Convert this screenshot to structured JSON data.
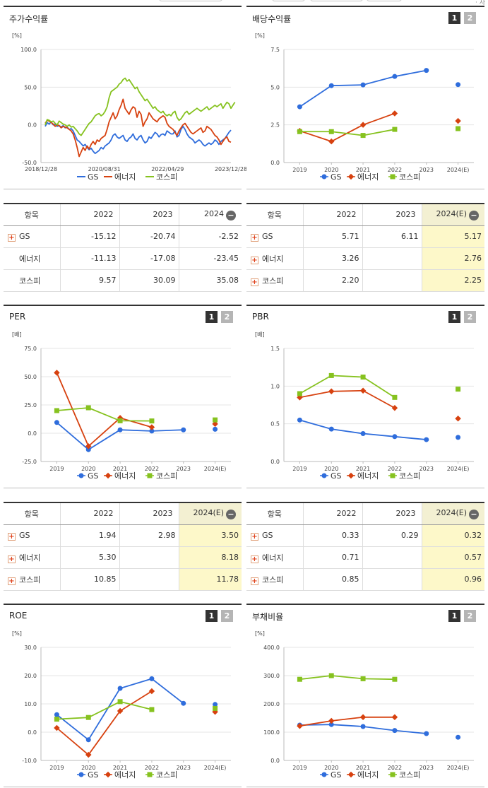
{
  "colors": {
    "GS": "#2f6ddc",
    "energy": "#d7410f",
    "kospi": "#86c21f"
  },
  "badges": {
    "one": "1",
    "two": "2"
  },
  "header": {
    "text": "· 자"
  },
  "panels": {
    "stock_return": {
      "title": "주가수익률"
    },
    "dividend": {
      "title": "배당수익률"
    },
    "per": {
      "title": "PER"
    },
    "pbr": {
      "title": "PBR"
    },
    "roe": {
      "title": "ROE"
    },
    "debt": {
      "title": "부채비율"
    }
  },
  "chart_data": [
    {
      "id": "stock_return",
      "type": "line",
      "unit": "[%]",
      "ylim": [
        -50,
        100
      ],
      "yticks": [
        "100.0",
        "50.0",
        "0.0",
        "-50.0"
      ],
      "x_ticks": [
        "2018/12/28",
        "2020/08/31",
        "2022/04/29",
        "2023/12/28"
      ],
      "series": [
        {
          "name": "GS",
          "color": "#2f6ddc",
          "values": [
            -2,
            3,
            1,
            4,
            0,
            1,
            -2,
            -1,
            -3,
            -1,
            -4,
            -3,
            -6,
            -5,
            -8,
            -14,
            -20,
            -22,
            -25,
            -28,
            -26,
            -30,
            -33,
            -31,
            -35,
            -38,
            -36,
            -34,
            -30,
            -32,
            -28,
            -26,
            -24,
            -20,
            -14,
            -12,
            -16,
            -18,
            -16,
            -14,
            -20,
            -22,
            -18,
            -16,
            -12,
            -18,
            -20,
            -16,
            -14,
            -20,
            -24,
            -22,
            -16,
            -18,
            -14,
            -10,
            -12,
            -16,
            -13,
            -12,
            -14,
            -8,
            -10,
            -12,
            -12,
            -8,
            -16,
            -14,
            -6,
            -2,
            -6,
            -12,
            -16,
            -18,
            -20,
            -24,
            -22,
            -20,
            -22,
            -26,
            -28,
            -26,
            -24,
            -26,
            -24,
            -20,
            -22,
            -26,
            -22,
            -20,
            -18,
            -14,
            -10,
            -7
          ]
        },
        {
          "name": "에너지",
          "color": "#d7410f",
          "values": [
            2,
            6,
            5,
            3,
            1,
            -2,
            0,
            -1,
            -4,
            -2,
            -3,
            -4,
            -6,
            -8,
            -12,
            -20,
            -30,
            -42,
            -36,
            -30,
            -34,
            -28,
            -32,
            -26,
            -22,
            -26,
            -20,
            -22,
            -18,
            -16,
            -14,
            -6,
            4,
            10,
            16,
            8,
            12,
            20,
            26,
            34,
            22,
            18,
            14,
            20,
            24,
            22,
            10,
            18,
            14,
            -2,
            4,
            8,
            16,
            12,
            8,
            6,
            4,
            8,
            10,
            12,
            10,
            2,
            -2,
            -4,
            -6,
            -10,
            -14,
            -8,
            -4,
            0,
            2,
            -2,
            -6,
            -10,
            -12,
            -10,
            -8,
            -6,
            -4,
            -10,
            -8,
            -2,
            -4,
            -6,
            -10,
            -14,
            -16,
            -20,
            -26,
            -22,
            -18,
            -16,
            -22,
            -23
          ]
        },
        {
          "name": "코스피",
          "color": "#86c21f",
          "values": [
            0,
            7,
            6,
            4,
            5,
            2,
            0,
            5,
            3,
            1,
            0,
            -2,
            0,
            -3,
            -2,
            -5,
            -8,
            -12,
            -14,
            -10,
            -6,
            -2,
            2,
            4,
            8,
            12,
            14,
            15,
            12,
            14,
            18,
            24,
            36,
            44,
            46,
            48,
            50,
            54,
            56,
            60,
            62,
            58,
            60,
            56,
            52,
            48,
            50,
            44,
            40,
            36,
            32,
            34,
            30,
            26,
            22,
            24,
            20,
            18,
            16,
            18,
            14,
            12,
            14,
            12,
            16,
            18,
            10,
            6,
            8,
            12,
            16,
            18,
            14,
            16,
            18,
            20,
            22,
            20,
            18,
            20,
            22,
            24,
            20,
            22,
            24,
            26,
            24,
            26,
            28,
            22,
            26,
            30,
            28,
            22,
            26,
            30
          ]
        }
      ]
    },
    {
      "id": "dividend",
      "type": "line",
      "unit": "[%]",
      "ylim": [
        0,
        7.5
      ],
      "yticks": [
        "7.5",
        "5.0",
        "2.5",
        "0.0"
      ],
      "categories": [
        "2019",
        "2020",
        "2021",
        "2022",
        "2023",
        "2024(E)"
      ],
      "series": [
        {
          "name": "GS",
          "color": "#2f6ddc",
          "values": [
            3.7,
            5.1,
            5.15,
            5.71,
            6.11,
            5.17
          ]
        },
        {
          "name": "에너지",
          "color": "#d7410f",
          "values": [
            2.1,
            1.4,
            2.5,
            3.26,
            null,
            2.76
          ]
        },
        {
          "name": "코스피",
          "color": "#86c21f",
          "values": [
            2.05,
            2.05,
            1.8,
            2.2,
            null,
            2.25
          ]
        }
      ]
    },
    {
      "id": "per",
      "type": "line",
      "unit": "[배]",
      "ylim": [
        -25,
        75
      ],
      "yticks": [
        "75.0",
        "50.0",
        "25.0",
        "0.0",
        "-25.0"
      ],
      "categories": [
        "2019",
        "2020",
        "2021",
        "2022",
        "2023",
        "2024(E)"
      ],
      "series": [
        {
          "name": "GS",
          "color": "#2f6ddc",
          "values": [
            9.5,
            -14.5,
            3.0,
            1.94,
            2.98,
            3.5
          ]
        },
        {
          "name": "에너지",
          "color": "#d7410f",
          "values": [
            53.5,
            -11.5,
            13.5,
            5.3,
            null,
            8.18
          ]
        },
        {
          "name": "코스피",
          "color": "#86c21f",
          "values": [
            20.0,
            22.5,
            11.0,
            10.85,
            null,
            11.78
          ]
        }
      ]
    },
    {
      "id": "pbr",
      "type": "line",
      "unit": "[배]",
      "ylim": [
        0,
        1.5
      ],
      "yticks": [
        "1.5",
        "1.0",
        "0.5",
        "0.0"
      ],
      "categories": [
        "2019",
        "2020",
        "2021",
        "2022",
        "2023",
        "2024(E)"
      ],
      "series": [
        {
          "name": "GS",
          "color": "#2f6ddc",
          "values": [
            0.55,
            0.43,
            0.37,
            0.33,
            0.29,
            0.32
          ]
        },
        {
          "name": "에너지",
          "color": "#d7410f",
          "values": [
            0.85,
            0.93,
            0.94,
            0.71,
            null,
            0.57
          ]
        },
        {
          "name": "코스피",
          "color": "#86c21f",
          "values": [
            0.9,
            1.14,
            1.12,
            0.85,
            null,
            0.96
          ]
        }
      ]
    },
    {
      "id": "roe",
      "type": "line",
      "unit": "[%]",
      "ylim": [
        -10,
        30
      ],
      "yticks": [
        "30.0",
        "20.0",
        "10.0",
        "0.0",
        "-10.0"
      ],
      "categories": [
        "2019",
        "2020",
        "2021",
        "2022",
        "2023",
        "2024(E)"
      ],
      "series": [
        {
          "name": "GS",
          "color": "#2f6ddc",
          "values": [
            6.2,
            -2.7,
            15.5,
            18.9,
            10.2,
            9.8
          ]
        },
        {
          "name": "에너지",
          "color": "#d7410f",
          "values": [
            1.5,
            -8.0,
            7.5,
            14.5,
            null,
            7.2
          ]
        },
        {
          "name": "코스피",
          "color": "#86c21f",
          "values": [
            4.6,
            5.2,
            10.8,
            8.0,
            null,
            8.4
          ]
        }
      ]
    },
    {
      "id": "debt",
      "type": "line",
      "unit": "[%]",
      "ylim": [
        0,
        400
      ],
      "yticks": [
        "400.0",
        "300.0",
        "200.0",
        "100.0",
        "0.0"
      ],
      "categories": [
        "2019",
        "2020",
        "2021",
        "2022",
        "2023",
        "2024(E)"
      ],
      "series": [
        {
          "name": "GS",
          "color": "#2f6ddc",
          "values": [
            125,
            127,
            120,
            106,
            95,
            82
          ]
        },
        {
          "name": "에너지",
          "color": "#d7410f",
          "values": [
            122,
            140,
            153,
            153,
            null,
            null
          ]
        },
        {
          "name": "코스피",
          "color": "#86c21f",
          "values": [
            287,
            300,
            289,
            287,
            null,
            null
          ]
        }
      ]
    }
  ],
  "tables": {
    "stock_return": {
      "headers": [
        "항목",
        "2022",
        "2023",
        "2024"
      ],
      "est_col": false,
      "rows": [
        {
          "name": "GS",
          "plus": true,
          "cells": [
            "-15.12",
            "-20.74",
            "-2.52"
          ]
        },
        {
          "name": "에너지",
          "plus": false,
          "cells": [
            "-11.13",
            "-17.08",
            "-23.45"
          ]
        },
        {
          "name": "코스피",
          "plus": false,
          "cells": [
            "9.57",
            "30.09",
            "35.08"
          ]
        }
      ]
    },
    "dividend": {
      "headers": [
        "항목",
        "2022",
        "2023",
        "2024(E)"
      ],
      "est_col": true,
      "rows": [
        {
          "name": "GS",
          "plus": true,
          "cells": [
            "5.71",
            "6.11",
            "5.17"
          ]
        },
        {
          "name": "에너지",
          "plus": true,
          "cells": [
            "3.26",
            "",
            "2.76"
          ]
        },
        {
          "name": "코스피",
          "plus": true,
          "cells": [
            "2.20",
            "",
            "2.25"
          ]
        }
      ]
    },
    "per": {
      "headers": [
        "항목",
        "2022",
        "2023",
        "2024(E)"
      ],
      "est_col": true,
      "rows": [
        {
          "name": "GS",
          "plus": true,
          "cells": [
            "1.94",
            "2.98",
            "3.50"
          ]
        },
        {
          "name": "에너지",
          "plus": true,
          "cells": [
            "5.30",
            "",
            "8.18"
          ]
        },
        {
          "name": "코스피",
          "plus": true,
          "cells": [
            "10.85",
            "",
            "11.78"
          ]
        }
      ]
    },
    "pbr": {
      "headers": [
        "항목",
        "2022",
        "2023",
        "2024(E)"
      ],
      "est_col": true,
      "rows": [
        {
          "name": "GS",
          "plus": true,
          "cells": [
            "0.33",
            "0.29",
            "0.32"
          ]
        },
        {
          "name": "에너지",
          "plus": true,
          "cells": [
            "0.71",
            "",
            "0.57"
          ]
        },
        {
          "name": "코스피",
          "plus": true,
          "cells": [
            "0.85",
            "",
            "0.96"
          ]
        }
      ]
    }
  }
}
